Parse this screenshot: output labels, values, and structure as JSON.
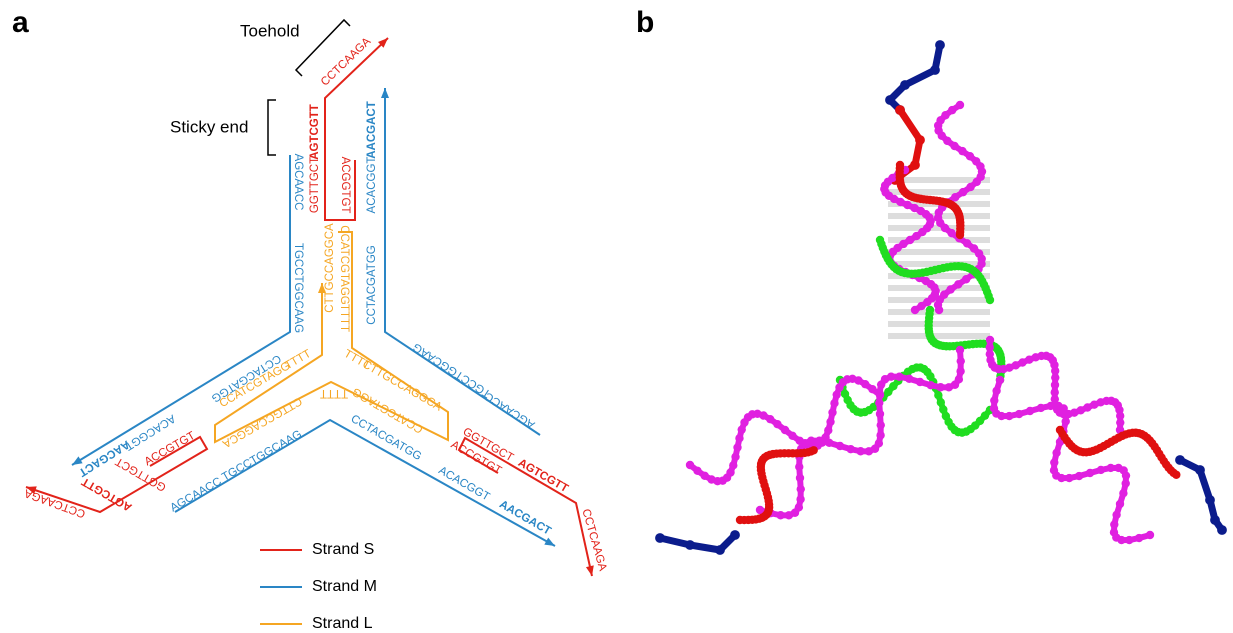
{
  "panels": {
    "a": "a",
    "b": "b"
  },
  "annotations": {
    "toehold": "Toehold",
    "sticky_end": "Sticky end"
  },
  "sequences": {
    "strand_s": [
      "CCTCAAGA",
      "AGTCGTT",
      "GGTTGCT",
      "ACGGTGT",
      "ACCGTGT",
      "GGTTGCT",
      "AGTCGTT",
      "CCTCAAGA",
      "ACCGTGT",
      "GGTTGCT",
      "AGTCGTT",
      "CCTCAAGA"
    ],
    "strand_m": [
      "AGCAACC",
      "TGCCTGGCAAG",
      "AACGACT",
      "ACACGGT",
      "CCTACGATGG",
      "TGCCTGGCAAG",
      "AGCAACC",
      "CCTACGATGG",
      "ACACGGT",
      "AACGACT",
      "AGCAACC",
      "TGCCTGGCAAG",
      "CCTACGATGG",
      "ACACGGT",
      "AACGACT"
    ],
    "strand_l": [
      "CTTGCCAGGCA",
      "CCATCGTAGG",
      "TTTT",
      "CCATCGTAGG",
      "TTTT",
      "TTTT",
      "CTTGCCAGGCA",
      "CCATCGTAGG",
      "TTTT",
      "CTTGCCAGGCA"
    ]
  },
  "legend": [
    {
      "label": "Strand S",
      "color": "#e2231a"
    },
    {
      "label": "Strand M",
      "color": "#2a86c5"
    },
    {
      "label": "Strand L",
      "color": "#f5a623"
    }
  ]
}
